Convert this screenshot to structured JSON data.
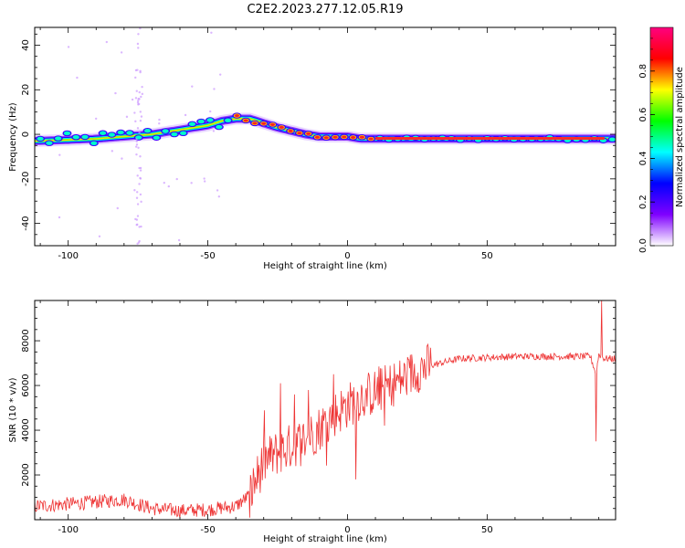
{
  "title": "C2E2.2023.277.12.05.R19",
  "chart_data": [
    {
      "type": "heatmap",
      "name": "spectrogram",
      "xlabel": "Height of straight line (km)",
      "ylabel": "Frequency (Hz)",
      "xlim": [
        -112,
        96
      ],
      "ylim": [
        -50,
        48
      ],
      "xticks": [
        -100,
        -50,
        0,
        50
      ],
      "yticks": [
        -40,
        -20,
        0,
        20,
        40
      ],
      "grid": false,
      "colorbar": {
        "label": "Normalized spectral amplitude",
        "range": [
          0,
          1
        ],
        "ticks": [
          "0.0",
          "0.2",
          "0.4",
          "0.6",
          "0.8"
        ],
        "colormap": [
          "#ffffff",
          "#7f00ff",
          "#0000ff",
          "#00ffff",
          "#00ff00",
          "#ffff00",
          "#ff0000",
          "#ff0080"
        ]
      },
      "ridge": {
        "x": [
          -112,
          -100,
          -90,
          -80,
          -70,
          -60,
          -50,
          -45,
          -40,
          -35,
          -30,
          -25,
          -20,
          -15,
          -10,
          -5,
          0,
          5,
          10,
          20,
          30,
          40,
          60,
          80,
          96
        ],
        "y": [
          -3,
          -2.5,
          -2,
          -1,
          0,
          2,
          4,
          6,
          7,
          7,
          5,
          3,
          1.5,
          0,
          -1,
          -1,
          -1,
          -2,
          -2,
          -2,
          -2,
          -2,
          -2,
          -2,
          -2
        ]
      },
      "scatter_column_x": -75
    },
    {
      "type": "line",
      "name": "snr",
      "xlabel": "Height of straight line (km)",
      "ylabel": "SNR (10 * v/v)",
      "xlim": [
        -112,
        96
      ],
      "ylim": [
        0,
        9800
      ],
      "xticks": [
        -100,
        -50,
        0,
        50
      ],
      "yticks": [
        2000,
        4000,
        6000,
        8000
      ],
      "grid": false,
      "color": "#ee3333",
      "envelope": {
        "x": [
          -112,
          -100,
          -90,
          -80,
          -70,
          -60,
          -50,
          -40,
          -35,
          -30,
          -25,
          -20,
          -15,
          -10,
          -5,
          0,
          5,
          10,
          15,
          20,
          25,
          30,
          40,
          60,
          80,
          87,
          89,
          90,
          92,
          96
        ],
        "y": [
          600,
          700,
          800,
          900,
          500,
          400,
          450,
          600,
          1100,
          2600,
          3000,
          3300,
          3600,
          4100,
          4700,
          5100,
          5500,
          5700,
          6000,
          6300,
          6700,
          6900,
          7200,
          7300,
          7300,
          7300,
          6500,
          7400,
          7200,
          7200
        ]
      },
      "spikes": [
        {
          "x": -24,
          "y": 6100
        },
        {
          "x": -19,
          "y": 5600
        },
        {
          "x": -14,
          "y": 5800
        },
        {
          "x": -5,
          "y": 6500
        },
        {
          "x": 0,
          "y": 5200
        },
        {
          "x": 3,
          "y": 1800
        },
        {
          "x": 8,
          "y": 6100
        },
        {
          "x": 15,
          "y": 5500
        },
        {
          "x": 89,
          "y": 3500
        },
        {
          "x": 91,
          "y": 9800
        }
      ]
    }
  ]
}
